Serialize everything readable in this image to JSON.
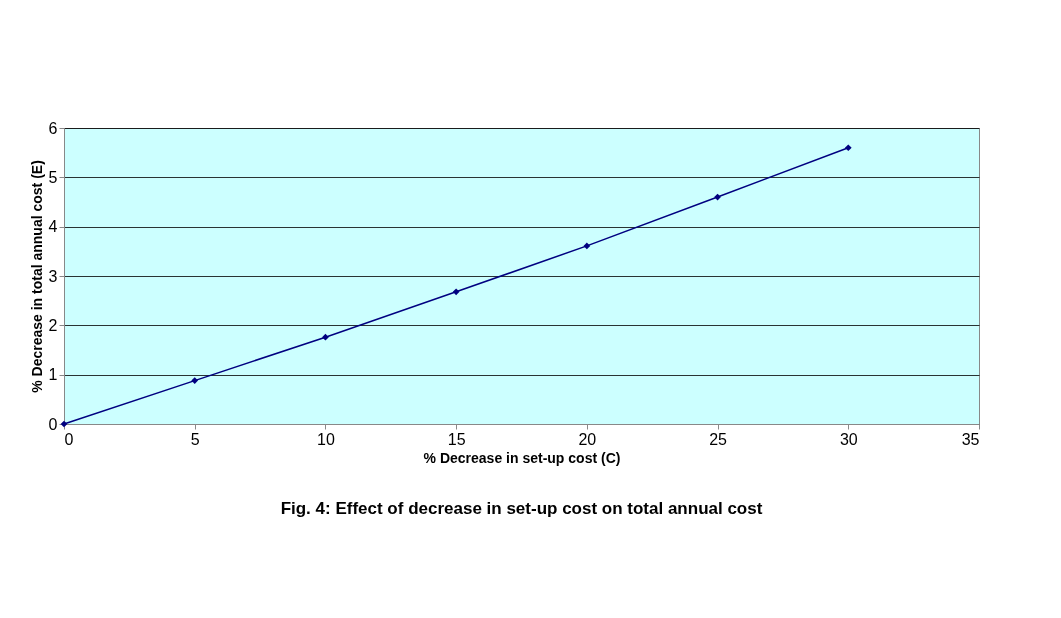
{
  "chart_data": {
    "type": "line",
    "title": "Fig. 4: Effect of decrease in set-up cost on total annual cost",
    "xlabel": "% Decrease in set-up cost (C)",
    "ylabel": "% Decrease in total annual cost (E)",
    "x": [
      0,
      5,
      10,
      15,
      20,
      25,
      30
    ],
    "series": [
      {
        "color": "#000080",
        "values": [
          0,
          0.88,
          1.76,
          2.68,
          3.61,
          4.6,
          5.6
        ]
      }
    ],
    "xlim": [
      0,
      35
    ],
    "xticks": [
      0,
      5,
      10,
      15,
      20,
      25,
      30,
      35
    ],
    "ylim": [
      0,
      6
    ],
    "yticks": [
      0,
      1,
      2,
      3,
      4,
      5,
      6
    ],
    "grid": "y",
    "marker": "diamond",
    "line_style": "solid"
  }
}
